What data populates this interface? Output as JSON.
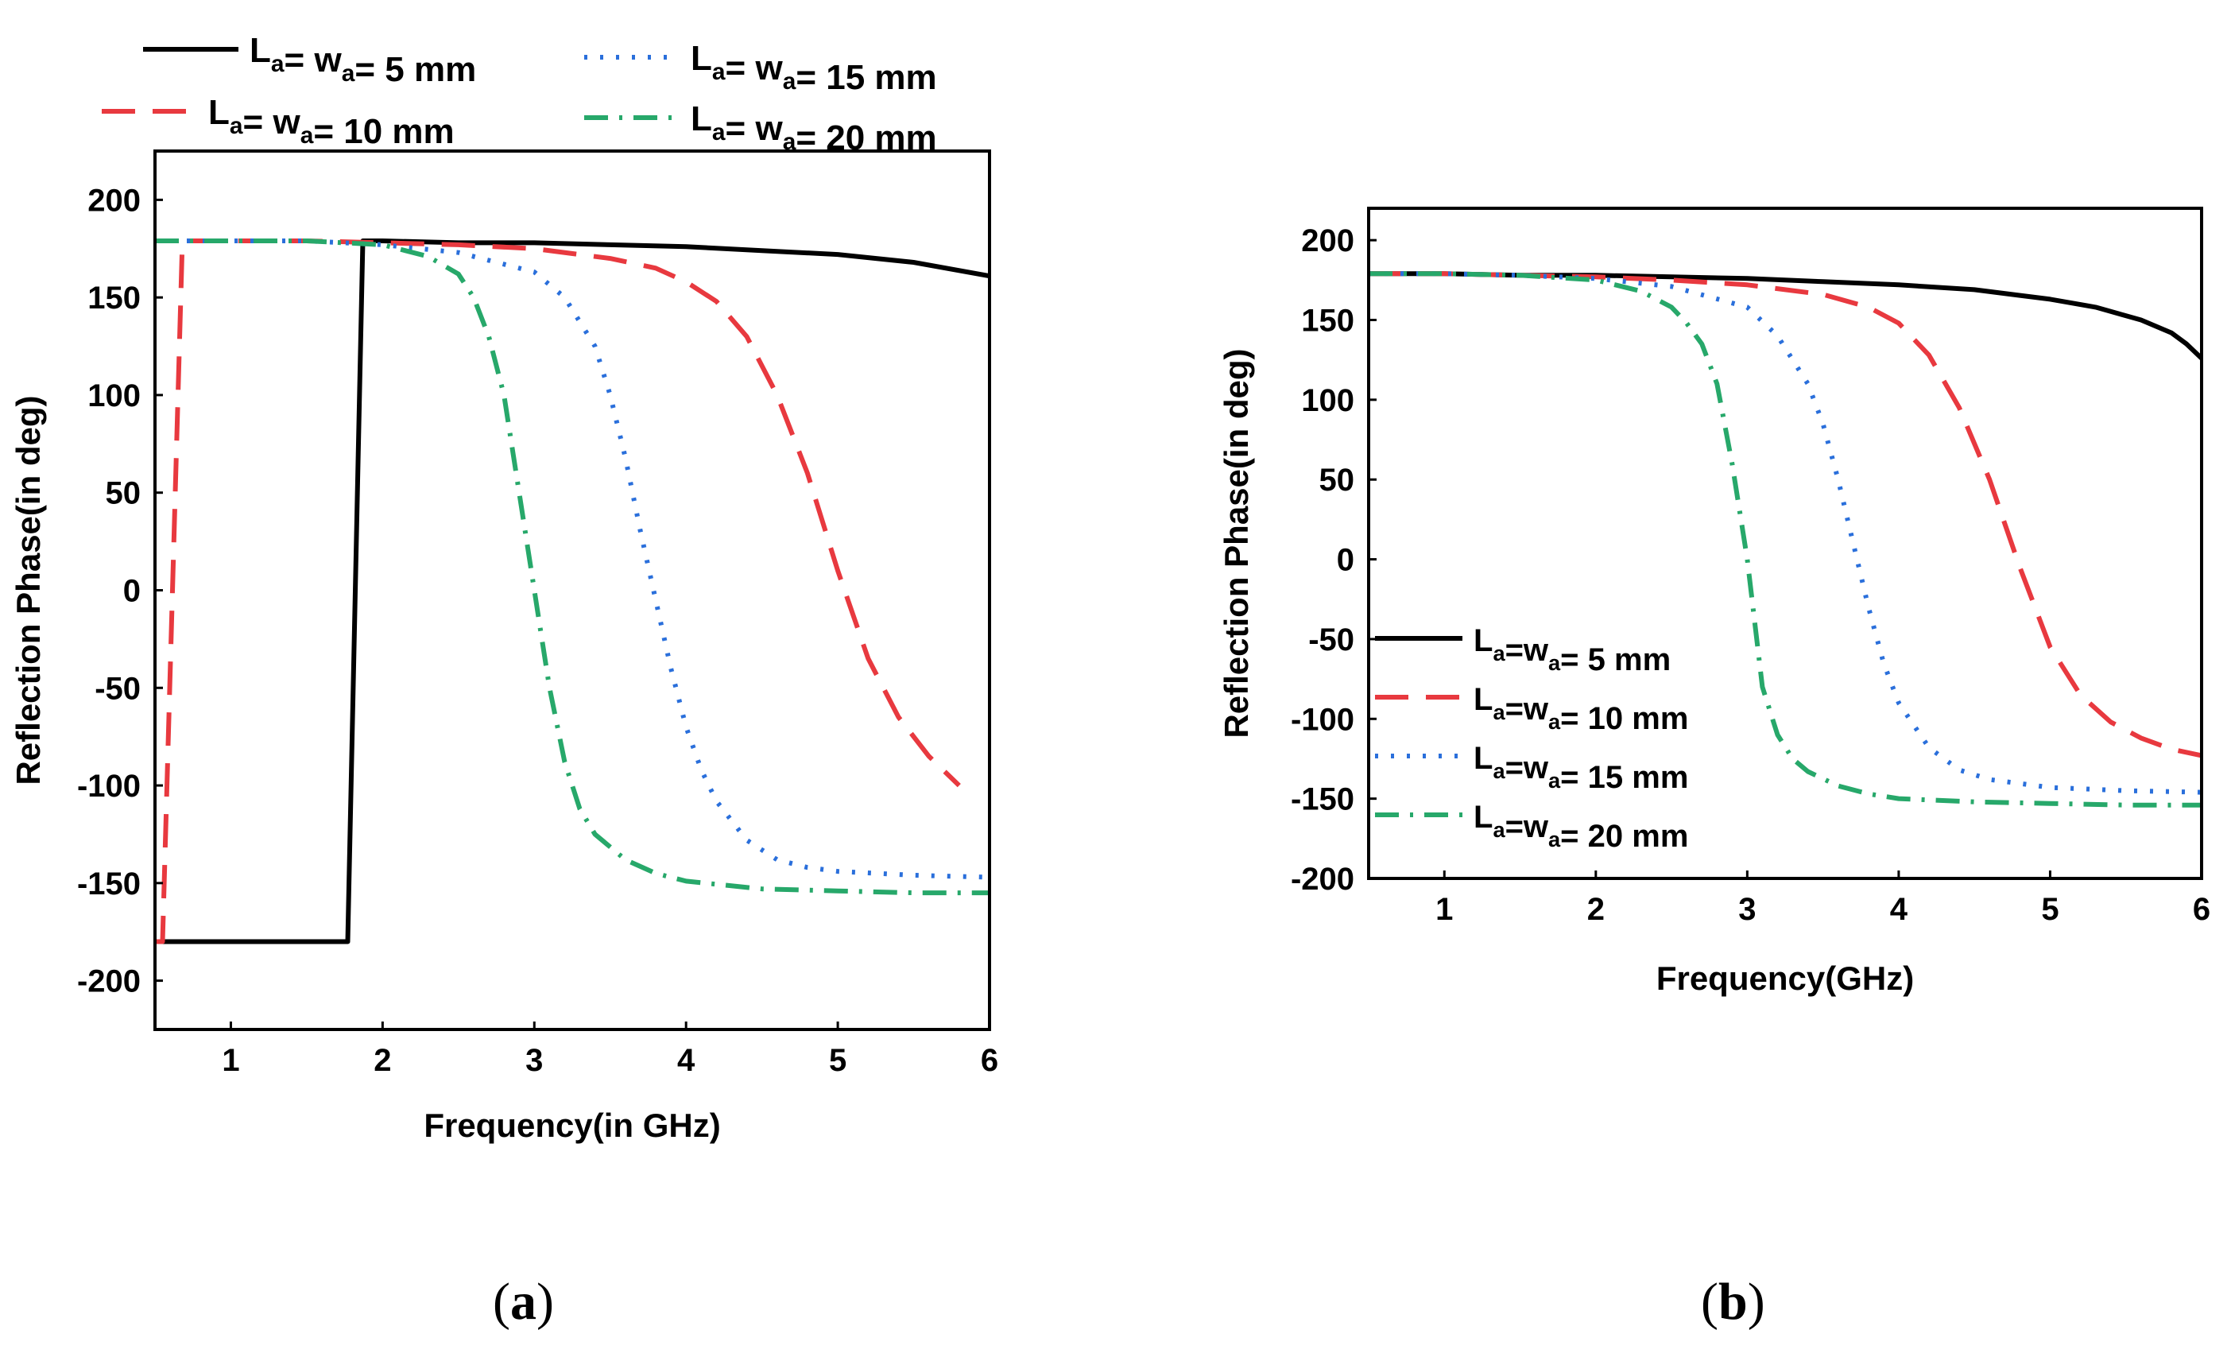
{
  "chart_data": [
    {
      "panel": "(a)",
      "type": "line",
      "title": "",
      "xlabel": "Frequency(in GHz)",
      "ylabel": "Reflection Phase(in deg)",
      "xlim": [
        0.5,
        6.0
      ],
      "ylim": [
        -225,
        225
      ],
      "xticks": [
        1,
        2,
        3,
        4,
        5,
        6
      ],
      "yticks": [
        -200,
        -150,
        -100,
        -50,
        0,
        50,
        100,
        150,
        200
      ],
      "grid": false,
      "legend": "above plot, two columns",
      "series": [
        {
          "name": "La= wa= 5 mm",
          "label": {
            "L": "L",
            "Lsub": "a",
            "mid": "= w",
            "wsub": "a",
            "tail": "= 5 mm"
          },
          "color": "#000000",
          "dash": "solid",
          "x": [
            0.5,
            1.77,
            1.77,
            1.87,
            2.0,
            2.5,
            3.0,
            3.5,
            4.0,
            4.5,
            5.0,
            5.5,
            6.0
          ],
          "y": [
            -180,
            -180,
            -180,
            179,
            179,
            178,
            178,
            177,
            176,
            174,
            172,
            168,
            161
          ]
        },
        {
          "name": "La= wa= 10 mm",
          "label": {
            "L": "L",
            "Lsub": "a",
            "mid": "= w",
            "wsub": "a",
            "tail": "= 10 mm"
          },
          "color": "#e8393f",
          "dash": "dash",
          "x": [
            0.5,
            0.55,
            0.68,
            0.7,
            1.0,
            1.5,
            2.0,
            2.5,
            3.0,
            3.5,
            3.8,
            4.0,
            4.2,
            4.4,
            4.6,
            4.8,
            5.0,
            5.2,
            5.4,
            5.6,
            5.8
          ],
          "y": [
            -180,
            -180,
            178,
            179,
            179,
            179,
            178,
            177,
            175,
            170,
            165,
            158,
            148,
            130,
            100,
            60,
            10,
            -35,
            -65,
            -85,
            -100
          ]
        },
        {
          "name": "La= wa= 15 mm",
          "label": {
            "L": "L",
            "Lsub": "a",
            "mid": "= w",
            "wsub": "a",
            "tail": "= 15 mm"
          },
          "color": "#2a6fdb",
          "dash": "dot",
          "x": [
            0.5,
            1.0,
            1.5,
            2.0,
            2.5,
            3.0,
            3.2,
            3.4,
            3.5,
            3.6,
            3.7,
            3.8,
            3.9,
            4.0,
            4.1,
            4.2,
            4.4,
            4.6,
            4.8,
            5.0,
            5.5,
            6.0
          ],
          "y": [
            179,
            179,
            179,
            177,
            173,
            163,
            150,
            125,
            100,
            68,
            30,
            -5,
            -40,
            -70,
            -92,
            -108,
            -128,
            -138,
            -142,
            -144,
            -146,
            -147
          ]
        },
        {
          "name": "La= wa= 20 mm",
          "label": {
            "L": "L",
            "Lsub": "a",
            "mid": "= w",
            "wsub": "a",
            "tail": "= 20 mm"
          },
          "color": "#27a86a",
          "dash": "dashdot",
          "x": [
            0.5,
            1.0,
            1.5,
            2.0,
            2.3,
            2.5,
            2.6,
            2.7,
            2.8,
            2.9,
            3.0,
            3.05,
            3.1,
            3.2,
            3.3,
            3.4,
            3.6,
            3.8,
            4.0,
            4.5,
            5.0,
            5.5,
            6.0
          ],
          "y": [
            179,
            179,
            179,
            177,
            171,
            162,
            150,
            130,
            100,
            50,
            0,
            -25,
            -50,
            -88,
            -112,
            -125,
            -138,
            -145,
            -149,
            -153,
            -154,
            -155,
            -155
          ]
        }
      ]
    },
    {
      "panel": "(b)",
      "type": "line",
      "title": "",
      "xlabel": "Frequency(GHz)",
      "ylabel": "Reflection Phase(in deg)",
      "xlim": [
        0.5,
        6.0
      ],
      "ylim": [
        -200,
        220
      ],
      "xticks": [
        1,
        2,
        3,
        4,
        5,
        6
      ],
      "yticks": [
        -200,
        -150,
        -100,
        -50,
        0,
        50,
        100,
        150,
        200
      ],
      "grid": false,
      "legend": "lower-left",
      "series": [
        {
          "name": "La=wa= 5 mm",
          "label": {
            "L": "L",
            "Lsub": "a",
            "mid": "=w",
            "wsub": "a",
            "tail": "= 5 mm"
          },
          "color": "#000000",
          "dash": "solid",
          "x": [
            0.5,
            1.0,
            1.5,
            2.0,
            2.5,
            3.0,
            3.5,
            4.0,
            4.5,
            5.0,
            5.3,
            5.6,
            5.8,
            5.9,
            6.0
          ],
          "y": [
            179,
            179,
            178,
            178,
            177,
            176,
            174,
            172,
            169,
            163,
            158,
            150,
            142,
            135,
            126
          ]
        },
        {
          "name": "La=wa= 10 mm",
          "label": {
            "L": "L",
            "Lsub": "a",
            "mid": "=w",
            "wsub": "a",
            "tail": "= 10 mm"
          },
          "color": "#e8393f",
          "dash": "dash",
          "x": [
            0.5,
            1.0,
            1.5,
            2.0,
            2.5,
            3.0,
            3.5,
            3.8,
            4.0,
            4.2,
            4.4,
            4.6,
            4.8,
            5.0,
            5.2,
            5.4,
            5.6,
            5.8,
            6.0
          ],
          "y": [
            179,
            179,
            178,
            177,
            175,
            172,
            166,
            158,
            148,
            128,
            95,
            50,
            -5,
            -55,
            -85,
            -102,
            -112,
            -119,
            -123
          ]
        },
        {
          "name": "La=wa= 15 mm",
          "label": {
            "L": "L",
            "Lsub": "a",
            "mid": "=w",
            "wsub": "a",
            "tail": "= 15 mm"
          },
          "color": "#2a6fdb",
          "dash": "dot",
          "x": [
            0.5,
            1.0,
            1.5,
            2.0,
            2.5,
            3.0,
            3.2,
            3.4,
            3.5,
            3.6,
            3.7,
            3.8,
            3.9,
            4.0,
            4.2,
            4.4,
            4.6,
            5.0,
            5.5,
            6.0
          ],
          "y": [
            179,
            179,
            178,
            176,
            171,
            158,
            140,
            110,
            85,
            50,
            10,
            -30,
            -65,
            -90,
            -118,
            -132,
            -138,
            -143,
            -145,
            -146
          ]
        },
        {
          "name": "La=wa= 20 mm",
          "label": {
            "L": "L",
            "Lsub": "a",
            "mid": "=w",
            "wsub": "a",
            "tail": "= 20 mm"
          },
          "color": "#27a86a",
          "dash": "dashdot",
          "x": [
            0.5,
            1.0,
            1.5,
            2.0,
            2.3,
            2.5,
            2.6,
            2.7,
            2.8,
            2.9,
            3.0,
            3.05,
            3.1,
            3.2,
            3.3,
            3.4,
            3.6,
            3.8,
            4.0,
            4.5,
            5.0,
            5.5,
            6.0
          ],
          "y": [
            179,
            179,
            178,
            175,
            168,
            158,
            148,
            135,
            110,
            60,
            0,
            -40,
            -80,
            -110,
            -125,
            -133,
            -142,
            -147,
            -150,
            -152,
            -153,
            -154,
            -154
          ]
        }
      ]
    }
  ],
  "panel_labels": {
    "a": {
      "open": "(",
      "letter": "a",
      "close": ")"
    },
    "b": {
      "open": "(",
      "letter": "b",
      "close": ")"
    }
  }
}
